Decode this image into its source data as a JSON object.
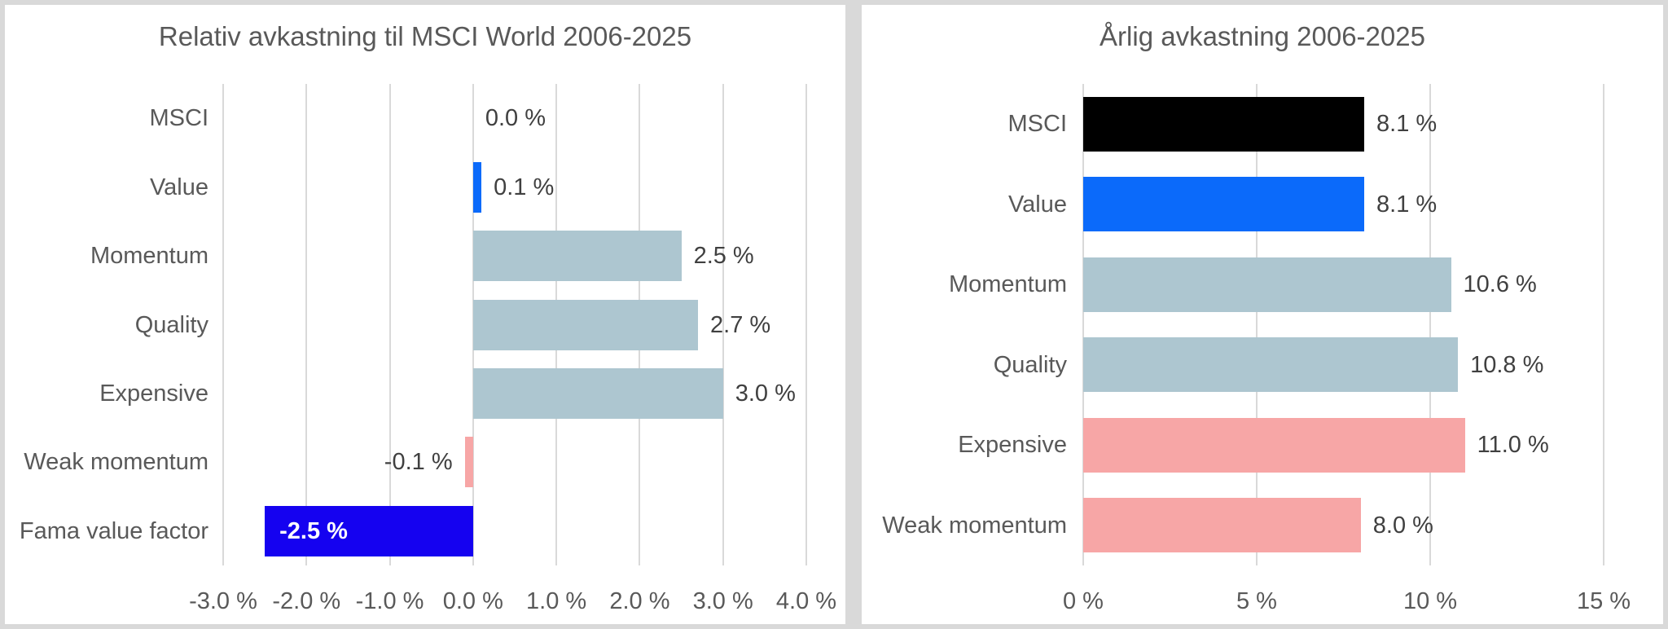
{
  "chart_data": [
    {
      "type": "bar",
      "orientation": "horizontal",
      "title": "Relativ avkastning til MSCI World 2006-2025",
      "categories": [
        "MSCI",
        "Value",
        "Momentum",
        "Quality",
        "Expensive",
        "Weak momentum",
        "Fama value factor"
      ],
      "values": [
        0.0,
        0.1,
        2.5,
        2.7,
        3.0,
        -0.1,
        -2.5
      ],
      "value_labels": [
        "0.0 %",
        "0.1 %",
        "2.5 %",
        "2.7 %",
        "3.0 %",
        "-0.1 %",
        "-2.5 %"
      ],
      "bar_colors": [
        "#ADC6D0",
        "#0B6AFA",
        "#ADC6D0",
        "#ADC6D0",
        "#ADC6D0",
        "#F7A6A6",
        "#1502F0"
      ],
      "value_label_styles": [
        "outside",
        "outside",
        "outside",
        "outside",
        "outside",
        "outside",
        "inside-left"
      ],
      "xlim": [
        -3,
        4
      ],
      "ticks": [
        -3,
        -2,
        -1,
        0,
        1,
        2,
        3,
        4
      ],
      "tick_labels": [
        "-3.0 %",
        "-2.0 %",
        "-1.0 %",
        "0.0 %",
        "1.0 %",
        "2.0 %",
        "3.0 %",
        "4.0 %"
      ],
      "grid": "vertical",
      "legend": "none",
      "colors": {
        "grid": "#D9D9D9",
        "title": "#595959",
        "axis_text": "#595959",
        "data_label": "#404040",
        "inside_label": "#FFFFFF"
      }
    },
    {
      "type": "bar",
      "orientation": "horizontal",
      "title": "Årlig avkastning 2006-2025",
      "categories": [
        "MSCI",
        "Value",
        "Momentum",
        "Quality",
        "Expensive",
        "Weak momentum"
      ],
      "values": [
        8.1,
        8.1,
        10.6,
        10.8,
        11.0,
        8.0
      ],
      "value_labels": [
        "8.1 %",
        "8.1 %",
        "10.6 %",
        "10.8 %",
        "11.0 %",
        "8.0 %"
      ],
      "bar_colors": [
        "#000000",
        "#0B6AFA",
        "#ADC6D0",
        "#ADC6D0",
        "#F7A6A6",
        "#F7A6A6"
      ],
      "value_label_styles": [
        "outside",
        "outside",
        "outside",
        "outside",
        "outside",
        "outside"
      ],
      "xlim": [
        0,
        15
      ],
      "ticks": [
        0,
        5,
        10,
        15
      ],
      "tick_labels": [
        "0 %",
        "5 %",
        "10 %",
        "15 %"
      ],
      "grid": "vertical",
      "legend": "none",
      "colors": {
        "grid": "#D9D9D9",
        "title": "#595959",
        "axis_text": "#595959",
        "data_label": "#404040",
        "inside_label": "#FFFFFF"
      }
    }
  ]
}
